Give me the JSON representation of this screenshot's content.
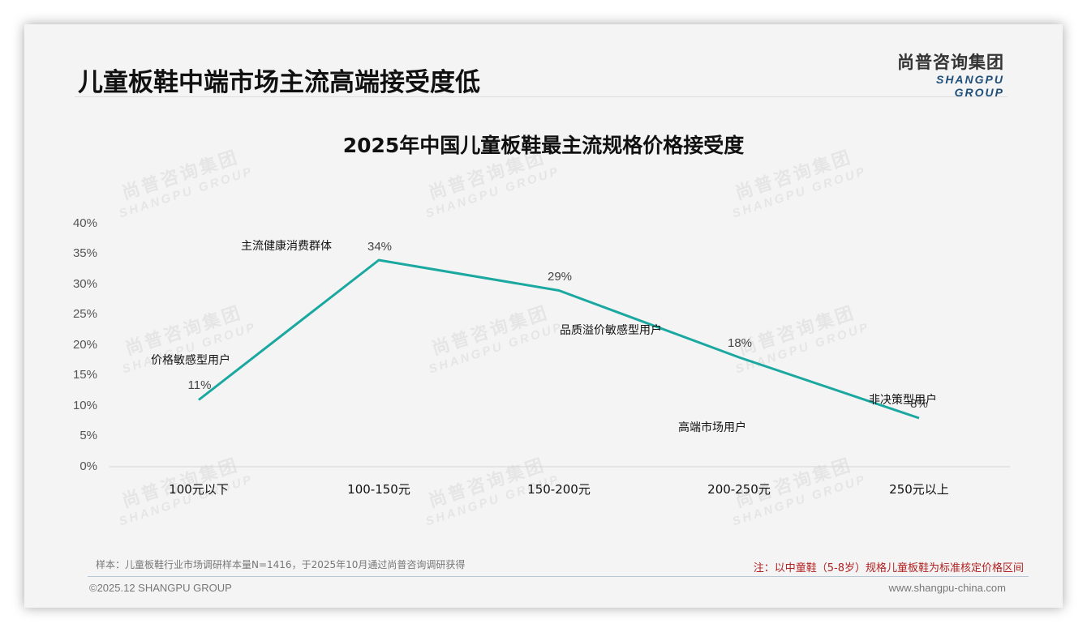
{
  "header": {
    "title": "儿童板鞋中端市场主流高端接受度低",
    "logo_cn": "尚普咨询集团",
    "logo_en": "SHANGPU GROUP"
  },
  "watermark": {
    "cn": "尚普咨询集团",
    "en": "SHANGPU GROUP"
  },
  "chart_data": {
    "type": "line",
    "title": "2025年中国儿童板鞋最主流规格价格接受度",
    "xlabel": "",
    "ylabel": "",
    "categories": [
      "100元以下",
      "100-150元",
      "150-200元",
      "200-250元",
      "250元以上"
    ],
    "series": [
      {
        "name": "价格接受度",
        "values": [
          11,
          34,
          29,
          18,
          8
        ],
        "color": "#1aa8a0"
      }
    ],
    "data_labels": [
      "11%",
      "34%",
      "29%",
      "18%",
      "8%"
    ],
    "yticks": [
      "0%",
      "5%",
      "10%",
      "15%",
      "20%",
      "25%",
      "30%",
      "35%",
      "40%"
    ],
    "ylim": [
      0,
      40
    ],
    "grid": false,
    "legend": "none",
    "annotations": [
      {
        "text": "价格敏感型用户",
        "category": "100元以下"
      },
      {
        "text": "主流健康消费群体",
        "category": "100-150元"
      },
      {
        "text": "品质溢价敏感型用户",
        "category": "150-200元"
      },
      {
        "text": "高端市场用户",
        "category": "200-250元"
      },
      {
        "text": "非决策型用户",
        "category": "250元以上"
      }
    ]
  },
  "footer": {
    "sample_note": "样本：儿童板鞋行业市场调研样本量N=1416，于2025年10月通过尚普咨询调研获得",
    "red_note": "注：以中童鞋（5-8岁）规格儿童板鞋为标准核定价格区间",
    "copyright": "©2025.12 SHANGPU GROUP",
    "website": "www.shangpu-china.com"
  }
}
